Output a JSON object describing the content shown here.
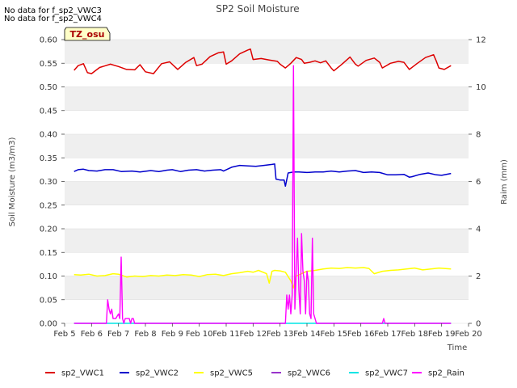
{
  "notes": [
    "No data for f_sp2_VWC3",
    "No data for f_sp2_VWC4"
  ],
  "badge": "TZ_osu",
  "chart_data": {
    "type": "line",
    "title": "SP2 Soil Moisture",
    "xlabel": "Time",
    "ylabel": "Soil Moisture (m3/m3)",
    "y2label": "Raim (mm)",
    "xlim": [
      5,
      20
    ],
    "ylim": [
      0,
      0.6
    ],
    "y2lim": [
      0,
      12
    ],
    "x_ticks": [
      5,
      6,
      7,
      8,
      9,
      10,
      11,
      12,
      13,
      14,
      15,
      16,
      17,
      18,
      19,
      20
    ],
    "x_tick_labels": [
      "Feb 5",
      "Feb 6",
      "Feb 7",
      "Feb 8",
      "Feb 9",
      "Feb 10",
      "Feb 11",
      "Feb 12",
      "Feb 13",
      "Feb 14",
      "Feb 15",
      "Feb 16",
      "Feb 17",
      "Feb 18",
      "Feb 19",
      "Feb 20"
    ],
    "y_ticks": [
      0,
      0.05,
      0.1,
      0.15,
      0.2,
      0.25,
      0.3,
      0.35,
      0.4,
      0.45,
      0.5,
      0.55,
      0.6
    ],
    "y_tick_labels": [
      "0.00",
      "0.05",
      "0.10",
      "0.15",
      "0.20",
      "0.25",
      "0.30",
      "0.35",
      "0.40",
      "0.45",
      "0.50",
      "0.55",
      "0.60"
    ],
    "y2_ticks": [
      0,
      2,
      4,
      6,
      8,
      10,
      12
    ],
    "y2_tick_labels": [
      "0",
      "2",
      "4",
      "6",
      "8",
      "10",
      "12"
    ],
    "grid": "horizontal bands",
    "legend": "bottom",
    "series": [
      {
        "name": "sp2_VWC1",
        "color": "#dd0000",
        "axis": "left",
        "x": [
          5.35,
          5.5,
          5.7,
          5.85,
          6.0,
          6.3,
          6.7,
          7.0,
          7.3,
          7.6,
          7.8,
          8.0,
          8.3,
          8.6,
          8.9,
          9.2,
          9.5,
          9.8,
          9.9,
          10.1,
          10.4,
          10.7,
          10.9,
          11.0,
          11.2,
          11.5,
          11.8,
          11.9,
          12.0,
          12.3,
          12.6,
          12.9,
          13.0,
          13.2,
          13.4,
          13.6,
          13.8,
          13.9,
          14.1,
          14.3,
          14.5,
          14.7,
          14.9,
          15.0,
          15.3,
          15.6,
          15.8,
          15.9,
          16.2,
          16.5,
          16.7,
          16.8,
          17.1,
          17.4,
          17.6,
          17.8,
          18.1,
          18.4,
          18.7,
          18.8,
          18.9,
          19.1,
          19.35
        ],
        "y": [
          0.535,
          0.545,
          0.549,
          0.53,
          0.528,
          0.541,
          0.548,
          0.543,
          0.537,
          0.536,
          0.547,
          0.532,
          0.528,
          0.549,
          0.553,
          0.537,
          0.552,
          0.562,
          0.545,
          0.548,
          0.564,
          0.572,
          0.574,
          0.548,
          0.555,
          0.57,
          0.578,
          0.58,
          0.558,
          0.56,
          0.557,
          0.554,
          0.548,
          0.54,
          0.55,
          0.562,
          0.558,
          0.55,
          0.552,
          0.555,
          0.551,
          0.555,
          0.54,
          0.534,
          0.548,
          0.563,
          0.548,
          0.544,
          0.556,
          0.561,
          0.552,
          0.54,
          0.55,
          0.554,
          0.552,
          0.537,
          0.55,
          0.562,
          0.568,
          0.555,
          0.54,
          0.537,
          0.545
        ]
      },
      {
        "name": "sp2_VWC2",
        "color": "#0000cc",
        "axis": "left",
        "x": [
          5.35,
          5.5,
          5.7,
          5.9,
          6.2,
          6.5,
          6.8,
          7.1,
          7.5,
          7.8,
          8.2,
          8.5,
          8.8,
          9.0,
          9.3,
          9.6,
          9.9,
          10.2,
          10.5,
          10.8,
          10.9,
          11.2,
          11.5,
          11.8,
          12.1,
          12.4,
          12.7,
          12.8,
          12.85,
          13.0,
          13.15,
          13.2,
          13.3,
          13.5,
          13.7,
          14.0,
          14.3,
          14.6,
          14.9,
          15.2,
          15.5,
          15.8,
          16.1,
          16.4,
          16.7,
          17.0,
          17.3,
          17.6,
          17.8,
          17.9,
          18.2,
          18.5,
          18.8,
          19.0,
          19.35
        ],
        "y": [
          0.321,
          0.325,
          0.326,
          0.323,
          0.322,
          0.325,
          0.325,
          0.321,
          0.322,
          0.32,
          0.323,
          0.321,
          0.324,
          0.325,
          0.321,
          0.324,
          0.325,
          0.322,
          0.324,
          0.325,
          0.322,
          0.33,
          0.334,
          0.333,
          0.332,
          0.334,
          0.336,
          0.337,
          0.305,
          0.303,
          0.303,
          0.29,
          0.318,
          0.32,
          0.32,
          0.319,
          0.32,
          0.32,
          0.322,
          0.32,
          0.322,
          0.323,
          0.319,
          0.32,
          0.319,
          0.314,
          0.314,
          0.315,
          0.309,
          0.31,
          0.315,
          0.318,
          0.314,
          0.313,
          0.317
        ]
      },
      {
        "name": "sp2_VWC5",
        "color": "#ffff00",
        "axis": "left",
        "x": [
          5.35,
          5.6,
          5.9,
          6.2,
          6.5,
          6.8,
          7.0,
          7.3,
          7.6,
          7.9,
          8.2,
          8.5,
          8.8,
          9.1,
          9.4,
          9.7,
          10.0,
          10.3,
          10.6,
          10.9,
          11.2,
          11.5,
          11.8,
          12.0,
          12.2,
          12.5,
          12.6,
          12.7,
          12.8,
          13.0,
          13.2,
          13.4,
          13.5,
          13.6,
          13.8,
          14.0,
          14.3,
          14.6,
          14.9,
          15.2,
          15.5,
          15.8,
          16.1,
          16.3,
          16.5,
          16.8,
          17.1,
          17.4,
          17.7,
          18.0,
          18.3,
          18.6,
          18.9,
          19.1,
          19.35
        ],
        "y": [
          0.103,
          0.102,
          0.104,
          0.1,
          0.101,
          0.105,
          0.104,
          0.098,
          0.1,
          0.099,
          0.101,
          0.1,
          0.102,
          0.101,
          0.103,
          0.102,
          0.099,
          0.103,
          0.104,
          0.101,
          0.105,
          0.107,
          0.11,
          0.108,
          0.112,
          0.105,
          0.085,
          0.11,
          0.112,
          0.111,
          0.108,
          0.09,
          0.075,
          0.1,
          0.105,
          0.11,
          0.112,
          0.115,
          0.117,
          0.116,
          0.118,
          0.117,
          0.118,
          0.116,
          0.105,
          0.11,
          0.112,
          0.113,
          0.115,
          0.117,
          0.113,
          0.115,
          0.117,
          0.116,
          0.115
        ]
      },
      {
        "name": "sp2_VWC6",
        "color": "#9933cc",
        "axis": "left",
        "x": [],
        "y": []
      },
      {
        "name": "sp2_VWC7",
        "color": "#00e5e5",
        "axis": "left",
        "x": [
          5.35,
          19.35
        ],
        "y": [
          0.0,
          0.0
        ]
      },
      {
        "name": "sp2_Rain",
        "color": "#ff00ff",
        "axis": "right",
        "x": [
          5.35,
          6.55,
          6.6,
          6.65,
          6.7,
          6.75,
          6.8,
          6.9,
          7.0,
          7.05,
          7.1,
          7.15,
          7.2,
          7.25,
          7.35,
          7.4,
          7.45,
          7.5,
          7.55,
          7.6,
          13.2,
          13.25,
          13.3,
          13.35,
          13.4,
          13.45,
          13.5,
          13.55,
          13.6,
          13.65,
          13.7,
          13.75,
          13.8,
          13.85,
          13.9,
          13.95,
          14.0,
          14.05,
          14.1,
          14.15,
          14.2,
          14.25,
          14.3,
          14.35,
          14.4,
          16.8,
          16.85,
          16.9,
          19.35
        ],
        "y": [
          0,
          0,
          1.0,
          0.6,
          0.4,
          0.6,
          0.2,
          0.2,
          0.4,
          0.2,
          2.8,
          0.2,
          0,
          0.2,
          0.2,
          0.2,
          0,
          0.2,
          0.2,
          0,
          0,
          1.2,
          0.6,
          1.2,
          0.4,
          1.2,
          10.9,
          0.6,
          2.2,
          3.6,
          1.4,
          0.4,
          3.8,
          2.2,
          1.8,
          0.4,
          2.2,
          1.8,
          0.4,
          0.2,
          3.6,
          0.4,
          0.2,
          0,
          0,
          0,
          0.2,
          0,
          0
        ]
      }
    ]
  }
}
